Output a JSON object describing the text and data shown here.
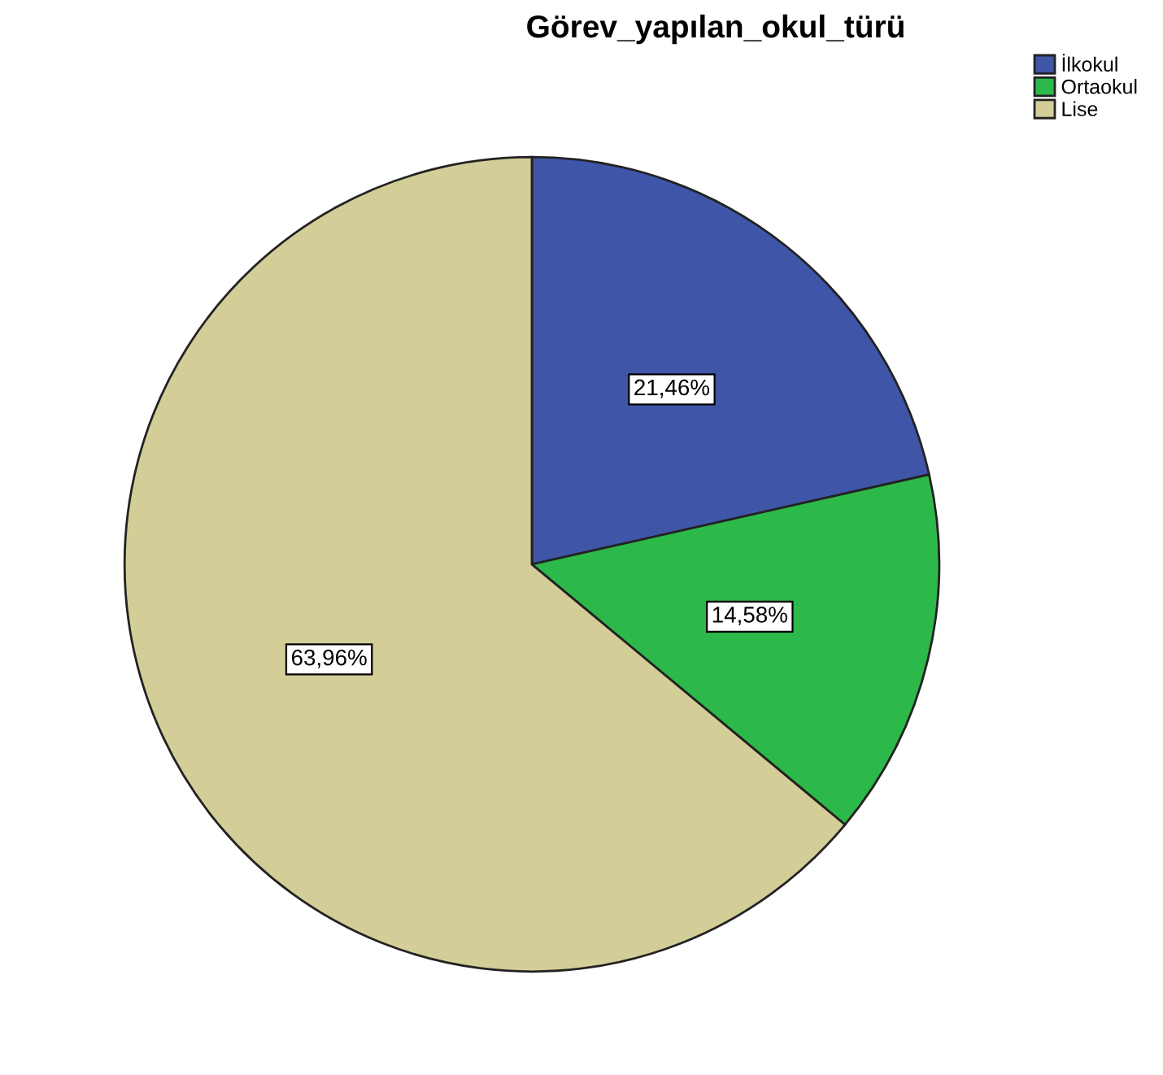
{
  "chart_data": {
    "type": "pie",
    "title": "Görev_yapılan_okul_türü",
    "categories": [
      "İlkokul",
      "Ortaokul",
      "Lise"
    ],
    "values": [
      21.46,
      14.58,
      63.96
    ],
    "colors": [
      "#3f56a8",
      "#2db84a",
      "#d3cd97"
    ],
    "value_labels": [
      "21,46%",
      "14,58%",
      "63,96%"
    ],
    "legend": "top right"
  }
}
